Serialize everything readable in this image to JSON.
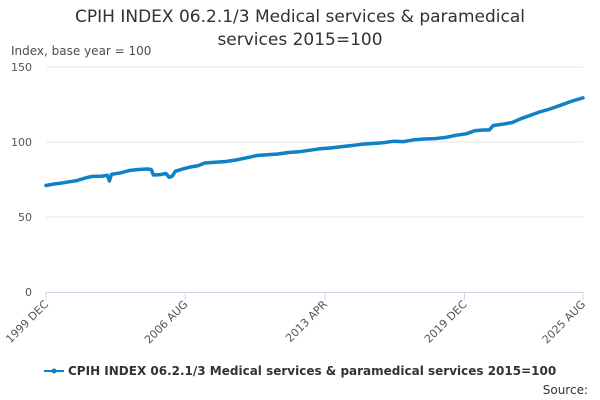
{
  "chart_data": {
    "type": "line",
    "title_line1": "CPIH INDEX 06.2.1/3 Medical services & paramedical",
    "title_line2": "services 2015=100",
    "ylabel": "Index, base year = 100",
    "ylim": [
      0,
      150
    ],
    "yticks": [
      "0",
      "50",
      "100",
      "150"
    ],
    "xlim": [
      1999.92,
      2025.58
    ],
    "xticks": [
      {
        "label": "1999 DEC",
        "t": 1999.92
      },
      {
        "label": "2006 AUG",
        "t": 2006.58
      },
      {
        "label": "2013 APR",
        "t": 2013.25
      },
      {
        "label": "2019 DEC",
        "t": 2019.92
      },
      {
        "label": "2025 AUG",
        "t": 2025.58
      }
    ],
    "series": [
      {
        "name": "CPIH INDEX 06.2.1/3 Medical services & paramedical services 2015=100",
        "color": "#0f82c5",
        "points": [
          [
            1999.92,
            71.0
          ],
          [
            2000.3,
            72.0
          ],
          [
            2000.6,
            72.5
          ],
          [
            2000.9,
            73.2
          ],
          [
            2001.4,
            74.3
          ],
          [
            2001.8,
            76.0
          ],
          [
            2002.1,
            77.0
          ],
          [
            2002.6,
            77.3
          ],
          [
            2002.85,
            77.8
          ],
          [
            2002.95,
            74.0
          ],
          [
            2003.05,
            78.5
          ],
          [
            2003.5,
            79.5
          ],
          [
            2003.9,
            81.0
          ],
          [
            2004.4,
            81.7
          ],
          [
            2004.8,
            82.0
          ],
          [
            2004.95,
            81.6
          ],
          [
            2005.05,
            78.0
          ],
          [
            2005.4,
            78.3
          ],
          [
            2005.65,
            79.0
          ],
          [
            2005.8,
            76.5
          ],
          [
            2005.95,
            77.2
          ],
          [
            2006.1,
            80.5
          ],
          [
            2006.4,
            81.8
          ],
          [
            2006.8,
            83.3
          ],
          [
            2007.2,
            84.3
          ],
          [
            2007.5,
            86.0
          ],
          [
            2008.0,
            86.5
          ],
          [
            2008.5,
            87.0
          ],
          [
            2009.0,
            88.0
          ],
          [
            2009.5,
            89.5
          ],
          [
            2010.0,
            91.0
          ],
          [
            2010.5,
            91.5
          ],
          [
            2011.0,
            92.0
          ],
          [
            2011.5,
            93.0
          ],
          [
            2012.0,
            93.5
          ],
          [
            2012.5,
            94.5
          ],
          [
            2013.0,
            95.5
          ],
          [
            2013.5,
            96.0
          ],
          [
            2014.0,
            96.8
          ],
          [
            2014.5,
            97.6
          ],
          [
            2015.0,
            98.5
          ],
          [
            2015.5,
            99.0
          ],
          [
            2016.0,
            99.5
          ],
          [
            2016.5,
            100.5
          ],
          [
            2017.0,
            100.3
          ],
          [
            2017.5,
            101.5
          ],
          [
            2018.0,
            102.0
          ],
          [
            2018.5,
            102.3
          ],
          [
            2019.0,
            103.0
          ],
          [
            2019.5,
            104.5
          ],
          [
            2020.0,
            105.5
          ],
          [
            2020.4,
            107.5
          ],
          [
            2020.8,
            108.0
          ],
          [
            2021.1,
            108.0
          ],
          [
            2021.3,
            111.0
          ],
          [
            2021.8,
            112.0
          ],
          [
            2022.2,
            113.0
          ],
          [
            2022.6,
            115.5
          ],
          [
            2023.0,
            117.5
          ],
          [
            2023.5,
            120.0
          ],
          [
            2024.0,
            122.0
          ],
          [
            2024.5,
            124.5
          ],
          [
            2025.0,
            127.0
          ],
          [
            2025.58,
            129.5
          ]
        ]
      }
    ],
    "legend_label": "CPIH INDEX 06.2.1/3 Medical services & paramedical services 2015=100",
    "source_label": "Source:"
  }
}
